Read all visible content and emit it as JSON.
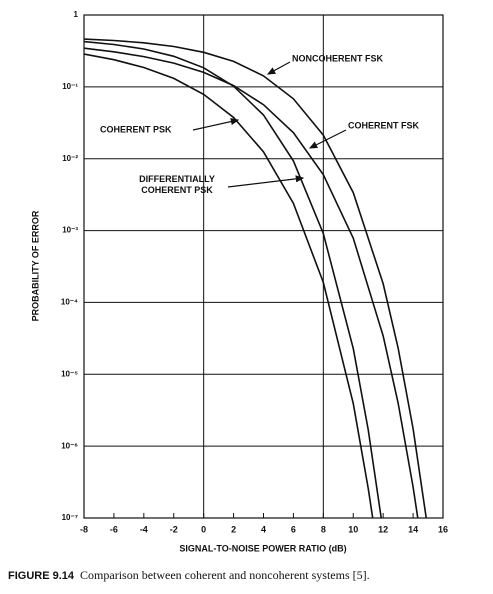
{
  "chart_data": {
    "type": "line",
    "xlabel": "SIGNAL-TO-NOISE POWER RATIO    (dB)",
    "ylabel": "PROBABILITY OF ERROR",
    "log_y": true,
    "xlim": [
      -8,
      16
    ],
    "ylim": [
      1e-07,
      1
    ],
    "xticks": [
      -8,
      -6,
      -4,
      -2,
      0,
      2,
      4,
      6,
      8,
      10,
      12,
      14,
      16
    ],
    "yticks": [
      1,
      {
        "value": 0.1,
        "label": "10⁻¹"
      },
      {
        "value": 0.01,
        "label": "10⁻²"
      },
      {
        "value": 0.001,
        "label": "10⁻³"
      },
      {
        "value": 0.0001,
        "label": "10⁻⁴"
      },
      {
        "value": 1e-05,
        "label": "10⁻⁵"
      },
      {
        "value": 1e-06,
        "label": "10⁻⁶"
      },
      {
        "value": 1e-07,
        "label": "10⁻⁷"
      }
    ],
    "xgrid": [
      0,
      8
    ],
    "series": [
      {
        "name": "NONCOHERENT FSK",
        "color": "#111111",
        "x": [
          -8,
          -6,
          -4,
          -2,
          0,
          2,
          4,
          6,
          8,
          10,
          12,
          13,
          14,
          15
        ],
        "values": [
          0.462,
          0.441,
          0.41,
          0.365,
          0.303,
          0.226,
          0.142,
          0.0683,
          0.0213,
          0.00337,
          0.000181,
          2.33e-05,
          1.75e-06,
          6.8e-08
        ]
      },
      {
        "name": "COHERENT FSK",
        "color": "#111111",
        "x": [
          -8,
          -6,
          -4,
          -2,
          0,
          2,
          4,
          6,
          8,
          10,
          12,
          13,
          14,
          14.5
        ],
        "values": [
          0.345,
          0.308,
          0.264,
          0.214,
          0.159,
          0.104,
          0.0565,
          0.023,
          0.006,
          0.00078,
          3.4e-05,
          4e-06,
          2.7e-07,
          5.5e-08
        ]
      },
      {
        "name": "COHERENT PSK",
        "color": "#111111",
        "x": [
          -8,
          -6,
          -4,
          -2,
          0,
          2,
          4,
          6,
          8,
          10,
          11,
          11.5
        ],
        "values": [
          0.287,
          0.239,
          0.186,
          0.131,
          0.0786,
          0.0375,
          0.0125,
          0.0024,
          0.00019,
          3.9e-06,
          2.6e-07,
          5.3e-08
        ]
      },
      {
        "name": "DIFFERENTIALLY COHERENT PSK",
        "color": "#111111",
        "x": [
          -8,
          -6,
          -4,
          -2,
          0,
          2,
          4,
          6,
          8,
          10,
          11,
          12
        ],
        "values": [
          0.427,
          0.389,
          0.336,
          0.266,
          0.184,
          0.102,
          0.0406,
          0.00933,
          0.00091,
          2.27e-05,
          1.7e-06,
          6.5e-08
        ]
      }
    ]
  },
  "caption": {
    "label": "FIGURE 9.14",
    "text": "Comparison between coherent and noncoherent systems [5]."
  }
}
